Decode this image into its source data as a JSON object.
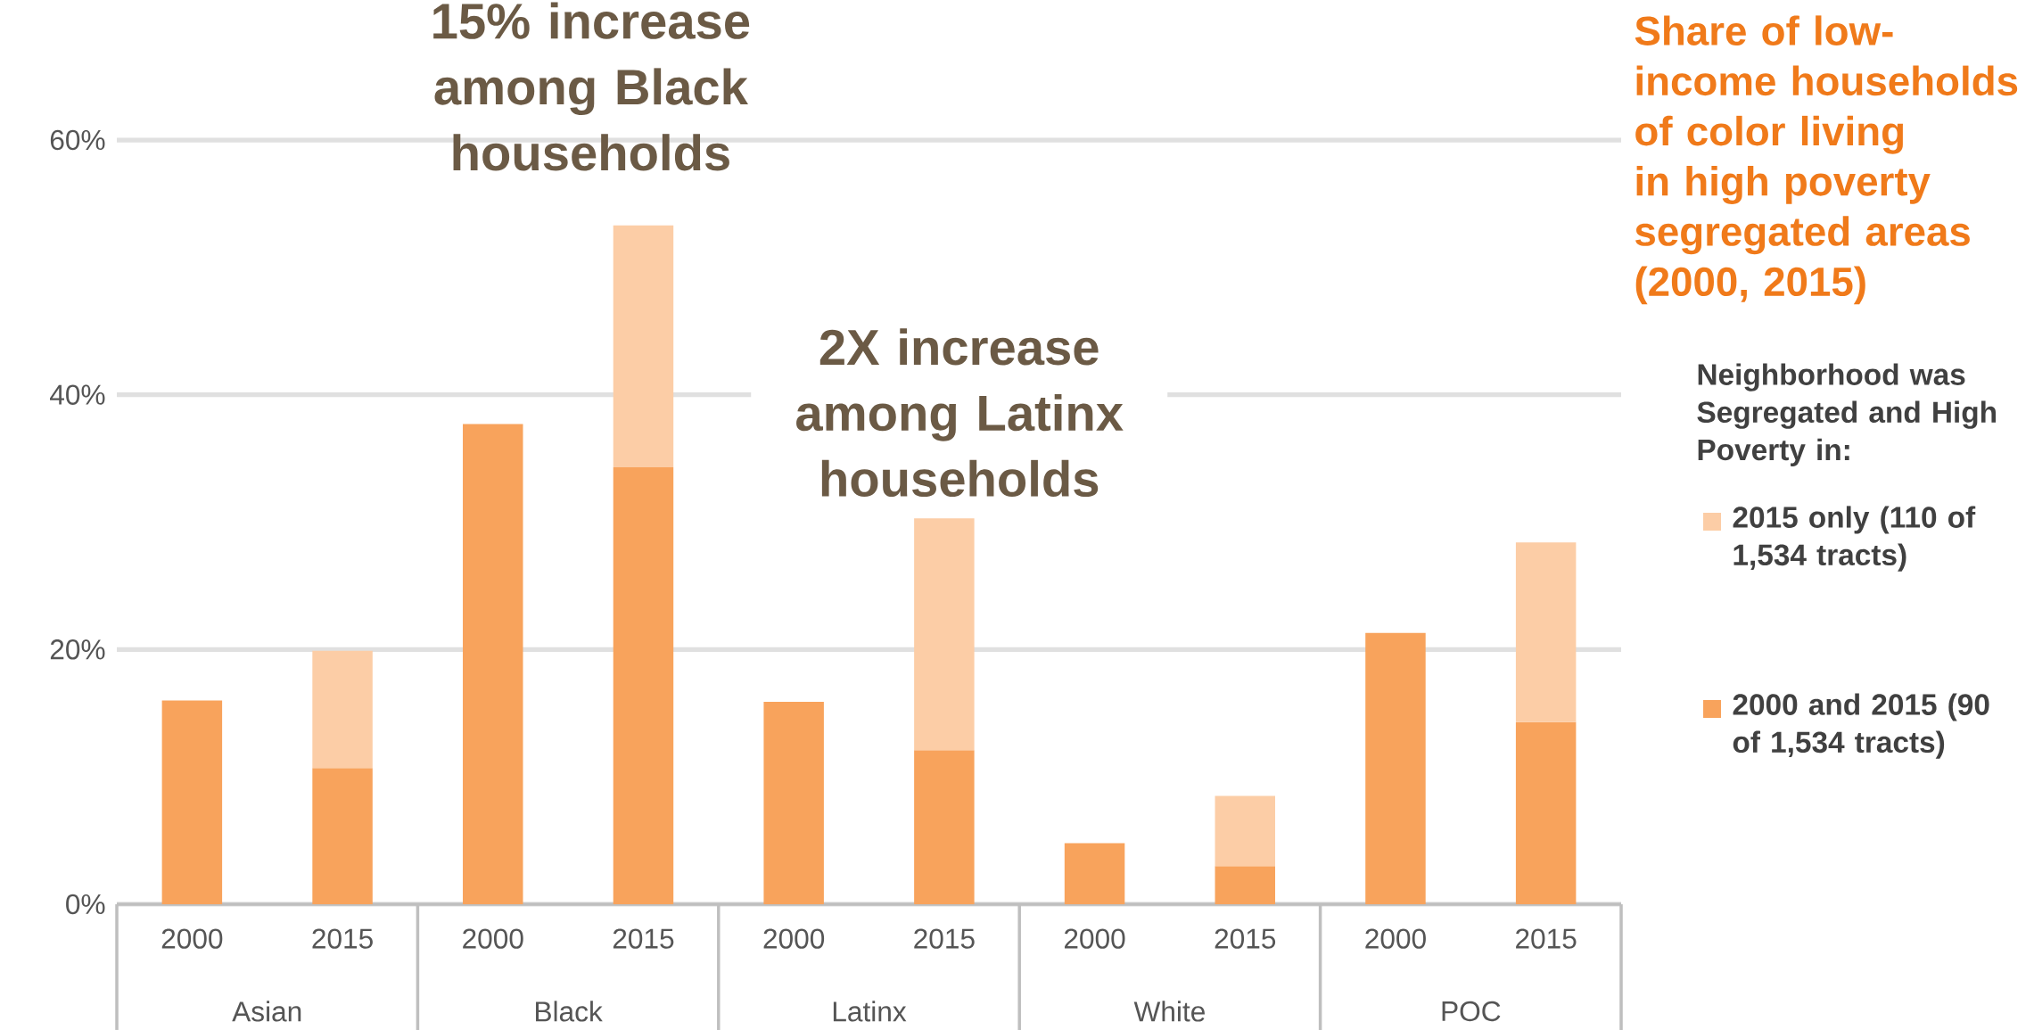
{
  "chart_data": {
    "type": "bar",
    "stacked": true,
    "title": "Share of low-income households of color living in high poverty segregated areas (2000, 2015)",
    "legend_title": "Neighborhood was Segregated and High Poverty in:",
    "categories": [
      "2000",
      "2015",
      "2000",
      "2015",
      "2000",
      "2015",
      "2000",
      "2015",
      "2000",
      "2015"
    ],
    "series": [
      {
        "name": "2000 and 2015 (90 of 1,534 tracts)",
        "color": "#f8a35c",
        "values": [
          16,
          10.7,
          37.7,
          34.3,
          15.9,
          12.1,
          4.8,
          3.0,
          21.3,
          14.3
        ]
      },
      {
        "name": "2015 only (110 of 1,534 tracts)",
        "color": "#fccda6",
        "values": [
          null,
          9.2,
          null,
          19.0,
          null,
          18.2,
          null,
          5.5,
          null,
          14.1
        ]
      }
    ],
    "ylim": [
      0,
      60
    ],
    "yticks": [
      {
        "value": 0,
        "label": "0%"
      },
      {
        "value": 20,
        "label": "20%"
      },
      {
        "value": 40,
        "label": "40%"
      },
      {
        "value": 60,
        "label": "60%"
      }
    ],
    "grid": "y",
    "legend": "right",
    "annotations": [
      "15% increase among Black households",
      "2X increase among Latinx households",
      "Asian",
      "Black",
      "Latinx",
      "White",
      "POC"
    ]
  }
}
